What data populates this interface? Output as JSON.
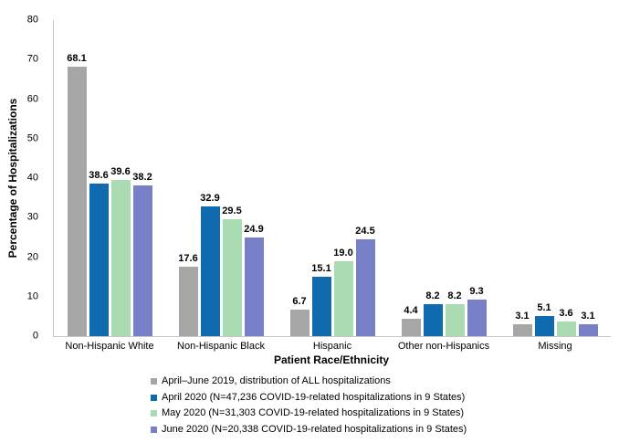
{
  "chart_data": {
    "type": "bar",
    "title": "",
    "xlabel": "Patient Race/Ethnicity",
    "ylabel": "Percentage of Hospitalizations",
    "ylim": [
      0,
      80
    ],
    "ytick_step": 10,
    "grid": false,
    "legend_position": "bottom",
    "value_label_decimals": 1,
    "axis_line_color": "#C6C6C6",
    "categories": [
      "Non-Hispanic White",
      "Non-Hispanic Black",
      "Hispanic",
      "Other non-Hispanics",
      "Missing"
    ],
    "series": [
      {
        "name": "April–June 2019, distribution of ALL hospitalizations",
        "color": "#A6A6A6",
        "values": [
          68.1,
          17.6,
          6.7,
          4.4,
          3.1
        ]
      },
      {
        "name": "April 2020 (N=47,236 COVID-19-related hospitalizations in 9 States)",
        "color": "#0F6BAD",
        "values": [
          38.6,
          32.9,
          15.1,
          8.2,
          5.1
        ]
      },
      {
        "name": "May 2020 (N=31,303 COVID-19-related hospitalizations in 9 States)",
        "color": "#ABDBB2",
        "values": [
          39.6,
          29.5,
          19.0,
          8.2,
          3.6
        ]
      },
      {
        "name": "June 2020 (N=20,338 COVID-19-related hospitalizations in 9 States)",
        "color": "#7780C7",
        "values": [
          38.2,
          24.9,
          24.5,
          9.3,
          3.1
        ]
      }
    ]
  }
}
